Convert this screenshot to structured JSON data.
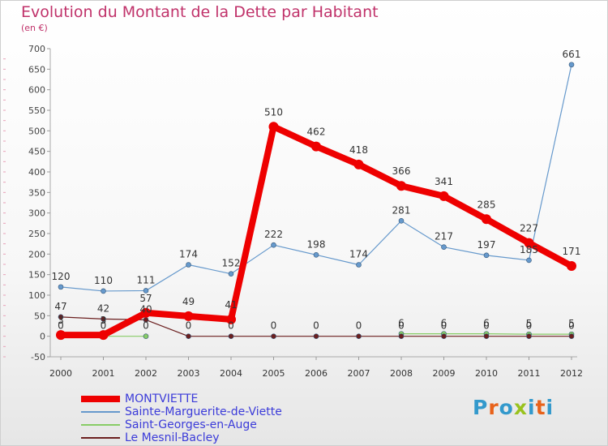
{
  "title": "Evolution du Montant de la Dette par Habitant",
  "unit": "(en €)",
  "logo": {
    "text": "Proxiti",
    "letter_colors": [
      "#3399cc",
      "#e8621a",
      "#3399cc",
      "#99c21e",
      "#3399cc",
      "#e8621a",
      "#3399cc"
    ]
  },
  "chart_data": {
    "type": "line",
    "title": "Evolution du Montant de la Dette par Habitant",
    "ylabel": "(en €)",
    "xlabel": "",
    "x": [
      "2000",
      "2001",
      "2002",
      "2003",
      "2004",
      "2005",
      "2006",
      "2007",
      "2008",
      "2009",
      "2010",
      "2011",
      "2012"
    ],
    "ylim": [
      -50,
      700
    ],
    "yticks": [
      -50,
      0,
      50,
      100,
      150,
      200,
      250,
      300,
      350,
      400,
      450,
      500,
      550,
      600,
      650,
      700
    ],
    "grid": false,
    "legend_position": "bottom-left",
    "series": [
      {
        "name": "MONTVIETTE",
        "color": "#ee0000",
        "emphasis": true,
        "values": [
          3,
          3,
          57,
          49,
          41,
          510,
          462,
          418,
          366,
          341,
          285,
          227,
          171
        ],
        "labels": [
          "3",
          "3",
          "57",
          "49",
          "41",
          "510",
          "462",
          "418",
          "366",
          "341",
          "285",
          "227",
          "171"
        ]
      },
      {
        "name": "Sainte-Marguerite-de-Viette",
        "color": "#6699cc",
        "emphasis": false,
        "values": [
          120,
          110,
          111,
          174,
          152,
          222,
          198,
          174,
          281,
          217,
          197,
          185,
          661
        ],
        "labels": [
          "120",
          "110",
          "111",
          "174",
          "152",
          "222",
          "198",
          "174",
          "281",
          "217",
          "197",
          "185",
          "661"
        ]
      },
      {
        "name": "Saint-Georges-en-Auge",
        "color": "#88cc66",
        "emphasis": false,
        "values": [
          0,
          0,
          0,
          null,
          null,
          null,
          null,
          null,
          6,
          6,
          6,
          5,
          5
        ],
        "labels": [
          "0",
          "0",
          "0",
          null,
          null,
          null,
          null,
          null,
          "6",
          "6",
          "6",
          "5",
          "5"
        ]
      },
      {
        "name": "Le Mesnil-Bacley",
        "color": "#6b1f1f",
        "emphasis": false,
        "values": [
          47,
          42,
          40,
          0,
          0,
          0,
          0,
          0,
          0,
          0,
          0,
          0,
          0
        ],
        "labels": [
          "47",
          "42",
          "40",
          "0",
          "0",
          "0",
          "0",
          "0",
          "0",
          "0",
          "0",
          "0",
          "0"
        ]
      }
    ]
  }
}
